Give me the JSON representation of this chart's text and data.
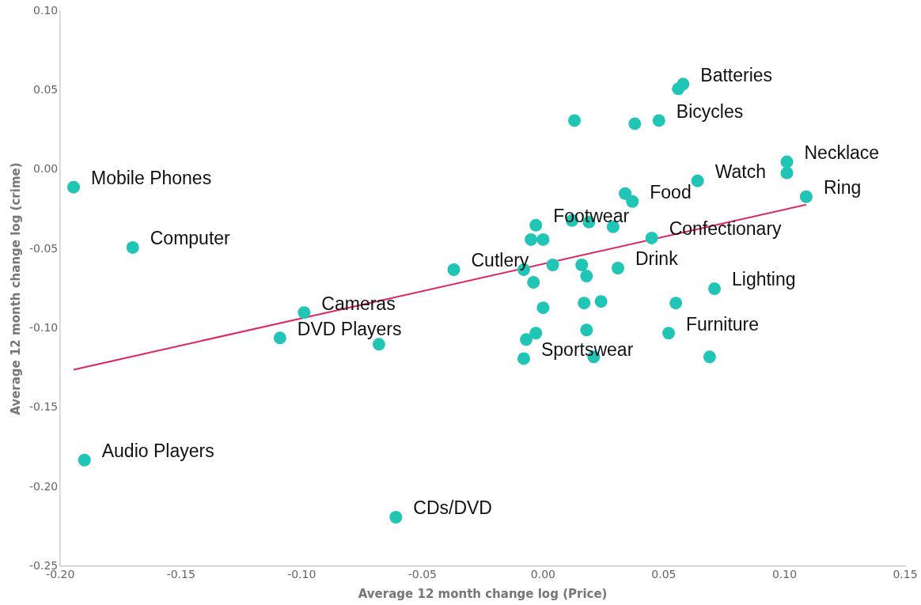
{
  "chart_data": {
    "type": "scatter",
    "xlabel": "Average 12 month change log (Price)",
    "ylabel": "Average 12 month change log (crime)",
    "marker": "circle",
    "grid": false,
    "legend": false,
    "xlim": [
      -0.2,
      0.15
    ],
    "ylim": [
      -0.25,
      0.1
    ],
    "xticks": [
      {
        "value": -0.2,
        "label": "-0.20"
      },
      {
        "value": -0.15,
        "label": "-0.15"
      },
      {
        "value": -0.1,
        "label": "-0.10"
      },
      {
        "value": -0.05,
        "label": "-0.05"
      },
      {
        "value": 0,
        "label": "0.00"
      },
      {
        "value": 0.05,
        "label": "0.05"
      },
      {
        "value": 0.1,
        "label": "0.10"
      },
      {
        "value": 0.15,
        "label": "0.15"
      }
    ],
    "yticks": [
      {
        "value": -0.25,
        "label": "-0.25"
      },
      {
        "value": -0.2,
        "label": "-0.20"
      },
      {
        "value": -0.15,
        "label": "-0.15"
      },
      {
        "value": -0.1,
        "label": "-0.10"
      },
      {
        "value": -0.05,
        "label": "-0.05"
      },
      {
        "value": 0,
        "label": "0.00"
      },
      {
        "value": 0.05,
        "label": "0.05"
      },
      {
        "value": 0.1,
        "label": "0.10"
      }
    ],
    "series": [
      {
        "color": "#20c5b5",
        "x": [
          -0.1945,
          -0.17,
          -0.099,
          -0.109,
          -0.068,
          -0.037,
          -0.19,
          -0.061,
          0.058,
          0.056,
          0.013,
          0.038,
          0.048,
          0.101,
          0.101,
          0.064,
          0.109,
          0.034,
          0.037,
          -0.003,
          0.012,
          0.019,
          0.029,
          -0.005,
          0,
          0.045,
          -0.008,
          0.004,
          0.016,
          0.018,
          0.031,
          -0.004,
          0.071,
          0,
          0.017,
          0.024,
          0.055,
          0.018,
          0.052,
          -0.003,
          -0.007,
          -0.008,
          0.021,
          0.069
        ],
        "values": [
          -0.011,
          -0.049,
          -0.09,
          -0.106,
          -0.11,
          -0.063,
          -0.183,
          -0.219,
          0.054,
          0.051,
          0.031,
          0.029,
          0.031,
          0.005,
          -0.002,
          -0.007,
          -0.017,
          -0.015,
          -0.02,
          -0.035,
          -0.032,
          -0.033,
          -0.036,
          -0.044,
          -0.044,
          -0.043,
          -0.063,
          -0.06,
          -0.06,
          -0.067,
          -0.062,
          -0.071,
          -0.075,
          -0.087,
          -0.084,
          -0.083,
          -0.084,
          -0.101,
          -0.103,
          -0.103,
          -0.107,
          -0.119,
          -0.118,
          -0.118
        ]
      },
      {
        "type": "line",
        "color": "#e0245e",
        "marker": "none",
        "x": [
          -0.1945,
          0.109
        ],
        "values": [
          -0.126,
          -0.022
        ]
      }
    ],
    "annotations": [
      {
        "text": "Mobile Phones",
        "x": -0.1945,
        "y": -0.011
      },
      {
        "text": "Computer",
        "x": -0.17,
        "y": -0.049
      },
      {
        "text": "Cameras",
        "x": -0.099,
        "y": -0.09
      },
      {
        "text": "DVD Players",
        "x": -0.109,
        "y": -0.106
      },
      {
        "text": "Cutlery",
        "x": -0.037,
        "y": -0.063
      },
      {
        "text": "Audio Players",
        "x": -0.19,
        "y": -0.183
      },
      {
        "text": "CDs/DVD",
        "x": -0.061,
        "y": -0.219
      },
      {
        "text": "Batteries",
        "x": 0.058,
        "y": 0.054
      },
      {
        "text": "Bicycles",
        "x": 0.048,
        "y": 0.031
      },
      {
        "text": "Necklace",
        "x": 0.101,
        "y": 0.005
      },
      {
        "text": "Watch",
        "x": 0.064,
        "y": -0.007
      },
      {
        "text": "Ring",
        "x": 0.109,
        "y": -0.017
      },
      {
        "text": "Food",
        "x": 0.037,
        "y": -0.02
      },
      {
        "text": "Footwear",
        "x": -0.003,
        "y": -0.035
      },
      {
        "text": "Confectionary",
        "x": 0.045,
        "y": -0.043
      },
      {
        "text": "Drink",
        "x": 0.031,
        "y": -0.062
      },
      {
        "text": "Lighting",
        "x": 0.071,
        "y": -0.075
      },
      {
        "text": "Furniture",
        "x": 0.052,
        "y": -0.103
      },
      {
        "text": "Sportswear",
        "x": -0.008,
        "y": -0.119
      }
    ]
  }
}
